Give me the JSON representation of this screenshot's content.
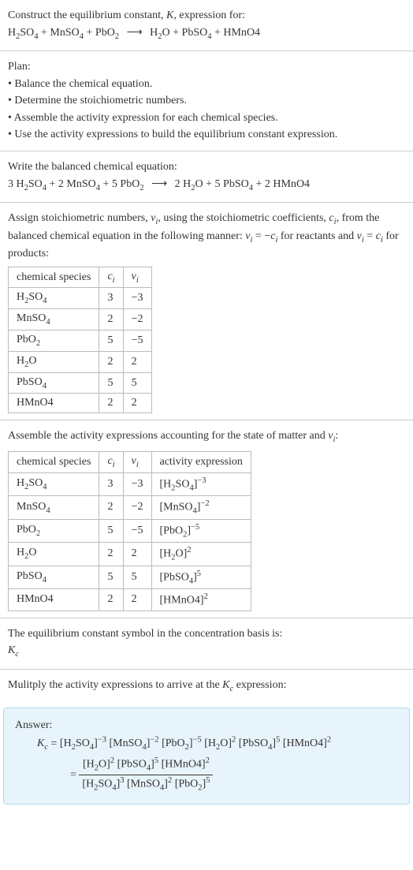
{
  "intro": {
    "line1": "Construct the equilibrium constant, <span class='italic'>K</span>, expression for:",
    "equation": "H<sub>2</sub>SO<sub>4</sub> + MnSO<sub>4</sub> + PbO<sub>2</sub> <span class='arrow'>⟶</span> H<sub>2</sub>O + PbSO<sub>4</sub> + HMnO4"
  },
  "plan": {
    "heading": "Plan:",
    "items": [
      "• Balance the chemical equation.",
      "• Determine the stoichiometric numbers.",
      "• Assemble the activity expression for each chemical species.",
      "• Use the activity expressions to build the equilibrium constant expression."
    ]
  },
  "balanced": {
    "heading": "Write the balanced chemical equation:",
    "equation": "3 H<sub>2</sub>SO<sub>4</sub> + 2 MnSO<sub>4</sub> + 5 PbO<sub>2</sub> <span class='arrow'>⟶</span> 2 H<sub>2</sub>O + 5 PbSO<sub>4</sub> + 2 HMnO4"
  },
  "stoich": {
    "text": "Assign stoichiometric numbers, <span class='italic'>ν<sub>i</sub></span>, using the stoichiometric coefficients, <span class='italic'>c<sub>i</sub></span>, from the balanced chemical equation in the following manner: <span class='italic'>ν<sub>i</sub></span> = −<span class='italic'>c<sub>i</sub></span> for reactants and <span class='italic'>ν<sub>i</sub></span> = <span class='italic'>c<sub>i</sub></span> for products:",
    "headers": [
      "chemical species",
      "<span class='italic'>c<sub>i</sub></span>",
      "<span class='italic'>ν<sub>i</sub></span>"
    ],
    "rows": [
      [
        "H<sub>2</sub>SO<sub>4</sub>",
        "3",
        "−3"
      ],
      [
        "MnSO<sub>4</sub>",
        "2",
        "−2"
      ],
      [
        "PbO<sub>2</sub>",
        "5",
        "−5"
      ],
      [
        "H<sub>2</sub>O",
        "2",
        "2"
      ],
      [
        "PbSO<sub>4</sub>",
        "5",
        "5"
      ],
      [
        "HMnO4",
        "2",
        "2"
      ]
    ]
  },
  "activity": {
    "text": "Assemble the activity expressions accounting for the state of matter and <span class='italic'>ν<sub>i</sub></span>:",
    "headers": [
      "chemical species",
      "<span class='italic'>c<sub>i</sub></span>",
      "<span class='italic'>ν<sub>i</sub></span>",
      "activity expression"
    ],
    "rows": [
      [
        "H<sub>2</sub>SO<sub>4</sub>",
        "3",
        "−3",
        "[H<sub>2</sub>SO<sub>4</sub>]<sup>−3</sup>"
      ],
      [
        "MnSO<sub>4</sub>",
        "2",
        "−2",
        "[MnSO<sub>4</sub>]<sup>−2</sup>"
      ],
      [
        "PbO<sub>2</sub>",
        "5",
        "−5",
        "[PbO<sub>2</sub>]<sup>−5</sup>"
      ],
      [
        "H<sub>2</sub>O",
        "2",
        "2",
        "[H<sub>2</sub>O]<sup>2</sup>"
      ],
      [
        "PbSO<sub>4</sub>",
        "5",
        "5",
        "[PbSO<sub>4</sub>]<sup>5</sup>"
      ],
      [
        "HMnO4",
        "2",
        "2",
        "[HMnO4]<sup>2</sup>"
      ]
    ]
  },
  "kc_symbol": {
    "line1": "The equilibrium constant symbol in the concentration basis is:",
    "line2": "<span class='italic'>K<sub>c</sub></span>"
  },
  "multiply": {
    "text": "Mulitply the activity expressions to arrive at the <span class='italic'>K<sub>c</sub></span> expression:"
  },
  "answer": {
    "label": "Answer:",
    "line1_lhs": "<span class='italic'>K<sub>c</sub></span> = ",
    "line1_rhs": "[H<sub>2</sub>SO<sub>4</sub>]<sup>−3</sup> [MnSO<sub>4</sub>]<sup>−2</sup> [PbO<sub>2</sub>]<sup>−5</sup> [H<sub>2</sub>O]<sup>2</sup> [PbSO<sub>4</sub>]<sup>5</sup> [HMnO4]<sup>2</sup>",
    "frac_num": "[H<sub>2</sub>O]<sup>2</sup> [PbSO<sub>4</sub>]<sup>5</sup> [HMnO4]<sup>2</sup>",
    "frac_den": "[H<sub>2</sub>SO<sub>4</sub>]<sup>3</sup> [MnSO<sub>4</sub>]<sup>2</sup> [PbO<sub>2</sub>]<sup>5</sup>"
  }
}
